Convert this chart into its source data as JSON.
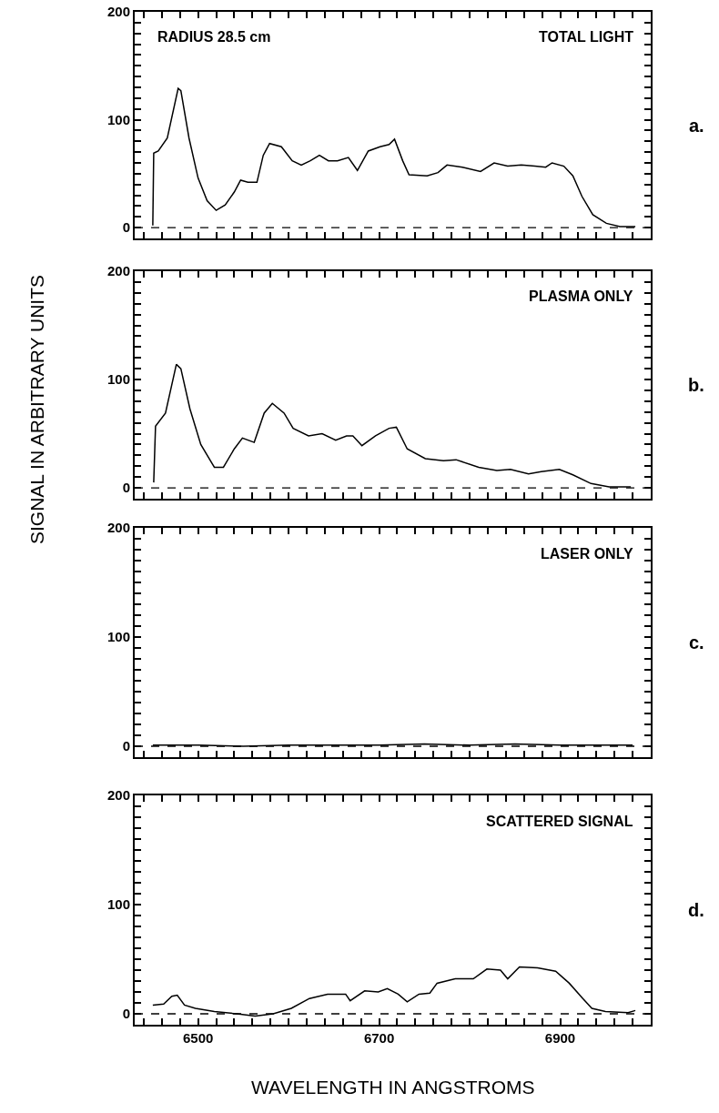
{
  "chart_data": [
    {
      "type": "line",
      "title": "TOTAL LIGHT",
      "annotations": [
        "RADIUS 28.5 cm",
        "a."
      ],
      "tick_labels": "y",
      "xlim": [
        6430,
        7000
      ],
      "ylim": [
        -10,
        200
      ],
      "xticks": [
        {
          "value": 6440,
          "label": null
        },
        {
          "value": 6460,
          "label": null
        },
        {
          "value": 6480,
          "label": null
        },
        {
          "value": 6500,
          "label": null
        },
        {
          "value": 6520,
          "label": null
        },
        {
          "value": 6540,
          "label": null
        },
        {
          "value": 6560,
          "label": null
        },
        {
          "value": 6580,
          "label": null
        },
        {
          "value": 6600,
          "label": null
        },
        {
          "value": 6620,
          "label": null
        },
        {
          "value": 6640,
          "label": null
        },
        {
          "value": 6660,
          "label": null
        },
        {
          "value": 6680,
          "label": null
        },
        {
          "value": 6700,
          "label": null
        },
        {
          "value": 6720,
          "label": null
        },
        {
          "value": 6740,
          "label": null
        },
        {
          "value": 6760,
          "label": null
        },
        {
          "value": 6780,
          "label": null
        },
        {
          "value": 6800,
          "label": null
        },
        {
          "value": 6820,
          "label": null
        },
        {
          "value": 6840,
          "label": null
        },
        {
          "value": 6860,
          "label": null
        },
        {
          "value": 6880,
          "label": null
        },
        {
          "value": 6900,
          "label": null
        },
        {
          "value": 6920,
          "label": null
        },
        {
          "value": 6940,
          "label": null
        },
        {
          "value": 6960,
          "label": null
        },
        {
          "value": 6980,
          "label": null
        }
      ],
      "yticks": [
        0,
        {
          "value": 10,
          "label": null
        },
        {
          "value": 20,
          "label": null
        },
        {
          "value": 30,
          "label": null
        },
        {
          "value": 40,
          "label": null
        },
        {
          "value": 50,
          "label": null
        },
        {
          "value": 60,
          "label": null
        },
        {
          "value": 70,
          "label": null
        },
        {
          "value": 80,
          "label": null
        },
        {
          "value": 90,
          "label": null
        },
        100,
        {
          "value": 110,
          "label": null
        },
        {
          "value": 120,
          "label": null
        },
        {
          "value": 130,
          "label": null
        },
        {
          "value": 140,
          "label": null
        },
        {
          "value": 150,
          "label": null
        },
        {
          "value": 160,
          "label": null
        },
        {
          "value": 170,
          "label": null
        },
        {
          "value": 180,
          "label": null
        },
        {
          "value": 190,
          "label": null
        },
        200
      ],
      "ref_lines": [
        {
          "axis": "y",
          "value": 0,
          "label": null,
          "color": "#000000",
          "line_style": "dashed"
        }
      ],
      "series": [
        {
          "color": "#000000",
          "line_style": "solid",
          "marker": "none",
          "x": [
            6450,
            6451,
            6456,
            6466,
            6478,
            6481,
            6490,
            6500,
            6510,
            6520,
            6530,
            6540,
            6547,
            6555,
            6565,
            6572,
            6579,
            6592,
            6604,
            6614,
            6624,
            6634,
            6644,
            6654,
            6666,
            6676,
            6688,
            6701,
            6711,
            6717,
            6726,
            6733,
            6753,
            6765,
            6775,
            6792,
            6812,
            6827,
            6842,
            6857,
            6872,
            6884,
            6891,
            6904,
            6914,
            6924,
            6936,
            6951,
            6966,
            6983
          ],
          "values": [
            2,
            69,
            71,
            83,
            129,
            127,
            83,
            46,
            25,
            16,
            21,
            33,
            44,
            42,
            42,
            67,
            78,
            75,
            62,
            58,
            62,
            67,
            62,
            62,
            65,
            53,
            71,
            75,
            77,
            82,
            62,
            49,
            48,
            51,
            58,
            56,
            52,
            60,
            57,
            58,
            57,
            56,
            60,
            57,
            48,
            29,
            12,
            4,
            1,
            1
          ]
        }
      ]
    },
    {
      "type": "line",
      "title": "PLASMA ONLY",
      "annotations": [
        "b."
      ],
      "ylabel": "SIGNAL IN ARBITRARY UNITS",
      "tick_labels": "y",
      "xlim": [
        6430,
        7000
      ],
      "ylim": [
        -10,
        200
      ],
      "xticks": [
        {
          "value": 6440,
          "label": null
        },
        {
          "value": 6460,
          "label": null
        },
        {
          "value": 6480,
          "label": null
        },
        {
          "value": 6500,
          "label": null
        },
        {
          "value": 6520,
          "label": null
        },
        {
          "value": 6540,
          "label": null
        },
        {
          "value": 6560,
          "label": null
        },
        {
          "value": 6580,
          "label": null
        },
        {
          "value": 6600,
          "label": null
        },
        {
          "value": 6620,
          "label": null
        },
        {
          "value": 6640,
          "label": null
        },
        {
          "value": 6660,
          "label": null
        },
        {
          "value": 6680,
          "label": null
        },
        {
          "value": 6700,
          "label": null
        },
        {
          "value": 6720,
          "label": null
        },
        {
          "value": 6740,
          "label": null
        },
        {
          "value": 6760,
          "label": null
        },
        {
          "value": 6780,
          "label": null
        },
        {
          "value": 6800,
          "label": null
        },
        {
          "value": 6820,
          "label": null
        },
        {
          "value": 6840,
          "label": null
        },
        {
          "value": 6860,
          "label": null
        },
        {
          "value": 6880,
          "label": null
        },
        {
          "value": 6900,
          "label": null
        },
        {
          "value": 6920,
          "label": null
        },
        {
          "value": 6940,
          "label": null
        },
        {
          "value": 6960,
          "label": null
        },
        {
          "value": 6980,
          "label": null
        }
      ],
      "yticks": [
        0,
        {
          "value": 10,
          "label": null
        },
        {
          "value": 20,
          "label": null
        },
        {
          "value": 30,
          "label": null
        },
        {
          "value": 40,
          "label": null
        },
        {
          "value": 50,
          "label": null
        },
        {
          "value": 60,
          "label": null
        },
        {
          "value": 70,
          "label": null
        },
        {
          "value": 80,
          "label": null
        },
        {
          "value": 90,
          "label": null
        },
        100,
        {
          "value": 110,
          "label": null
        },
        {
          "value": 120,
          "label": null
        },
        {
          "value": 130,
          "label": null
        },
        {
          "value": 140,
          "label": null
        },
        {
          "value": 150,
          "label": null
        },
        {
          "value": 160,
          "label": null
        },
        {
          "value": 170,
          "label": null
        },
        {
          "value": 180,
          "label": null
        },
        {
          "value": 190,
          "label": null
        },
        200
      ],
      "ref_lines": [
        {
          "axis": "y",
          "value": 0,
          "label": null,
          "color": "#000000",
          "line_style": "dashed"
        }
      ],
      "series": [
        {
          "color": "#000000",
          "line_style": "solid",
          "marker": "none",
          "x": [
            6451,
            6453,
            6464,
            6476,
            6481,
            6491,
            6503,
            6518,
            6528,
            6540,
            6549,
            6562,
            6573,
            6582,
            6595,
            6605,
            6622,
            6637,
            6652,
            6664,
            6671,
            6681,
            6696,
            6711,
            6719,
            6731,
            6751,
            6771,
            6785,
            6810,
            6830,
            6845,
            6865,
            6879,
            6899,
            6914,
            6934,
            6954,
            6978
          ],
          "values": [
            5,
            57,
            69,
            114,
            110,
            73,
            40,
            19,
            19,
            36,
            46,
            42,
            69,
            78,
            69,
            55,
            48,
            50,
            44,
            48,
            48,
            39,
            48,
            55,
            56,
            36,
            27,
            25,
            26,
            19,
            16,
            17,
            13,
            15,
            17,
            12,
            4,
            1,
            1
          ]
        }
      ]
    },
    {
      "type": "line",
      "title": "LASER ONLY",
      "annotations": [
        "c."
      ],
      "tick_labels": "y",
      "xlim": [
        6430,
        7000
      ],
      "ylim": [
        -10,
        200
      ],
      "xticks": [
        {
          "value": 6440,
          "label": null
        },
        {
          "value": 6460,
          "label": null
        },
        {
          "value": 6480,
          "label": null
        },
        {
          "value": 6500,
          "label": null
        },
        {
          "value": 6520,
          "label": null
        },
        {
          "value": 6540,
          "label": null
        },
        {
          "value": 6560,
          "label": null
        },
        {
          "value": 6580,
          "label": null
        },
        {
          "value": 6600,
          "label": null
        },
        {
          "value": 6620,
          "label": null
        },
        {
          "value": 6640,
          "label": null
        },
        {
          "value": 6660,
          "label": null
        },
        {
          "value": 6680,
          "label": null
        },
        {
          "value": 6700,
          "label": null
        },
        {
          "value": 6720,
          "label": null
        },
        {
          "value": 6740,
          "label": null
        },
        {
          "value": 6760,
          "label": null
        },
        {
          "value": 6780,
          "label": null
        },
        {
          "value": 6800,
          "label": null
        },
        {
          "value": 6820,
          "label": null
        },
        {
          "value": 6840,
          "label": null
        },
        {
          "value": 6860,
          "label": null
        },
        {
          "value": 6880,
          "label": null
        },
        {
          "value": 6900,
          "label": null
        },
        {
          "value": 6920,
          "label": null
        },
        {
          "value": 6940,
          "label": null
        },
        {
          "value": 6960,
          "label": null
        },
        {
          "value": 6980,
          "label": null
        }
      ],
      "yticks": [
        0,
        {
          "value": 10,
          "label": null
        },
        {
          "value": 20,
          "label": null
        },
        {
          "value": 30,
          "label": null
        },
        {
          "value": 40,
          "label": null
        },
        {
          "value": 50,
          "label": null
        },
        {
          "value": 60,
          "label": null
        },
        {
          "value": 70,
          "label": null
        },
        {
          "value": 80,
          "label": null
        },
        {
          "value": 90,
          "label": null
        },
        100,
        {
          "value": 110,
          "label": null
        },
        {
          "value": 120,
          "label": null
        },
        {
          "value": 130,
          "label": null
        },
        {
          "value": 140,
          "label": null
        },
        {
          "value": 150,
          "label": null
        },
        {
          "value": 160,
          "label": null
        },
        {
          "value": 170,
          "label": null
        },
        {
          "value": 180,
          "label": null
        },
        {
          "value": 190,
          "label": null
        },
        200
      ],
      "ref_lines": [
        {
          "axis": "y",
          "value": 0,
          "label": null,
          "color": "#000000",
          "line_style": "dashed"
        }
      ],
      "series": [
        {
          "color": "#000000",
          "line_style": "solid",
          "marker": "none",
          "x": [
            6450,
            6500,
            6550,
            6600,
            6650,
            6700,
            6750,
            6800,
            6850,
            6900,
            6950,
            6980
          ],
          "values": [
            1,
            1,
            0,
            1,
            1,
            1,
            2,
            1,
            2,
            1,
            1,
            1
          ]
        }
      ]
    },
    {
      "type": "line",
      "title": "SCATTERED SIGNAL",
      "annotations": [
        "d."
      ],
      "xlabel": "WAVELENGTH IN ANGSTROMS",
      "xlim": [
        6430,
        7000
      ],
      "ylim": [
        -10,
        200
      ],
      "xticks": [
        {
          "value": 6440,
          "label": null
        },
        {
          "value": 6460,
          "label": null
        },
        {
          "value": 6480,
          "label": null
        },
        6500,
        {
          "value": 6520,
          "label": null
        },
        {
          "value": 6540,
          "label": null
        },
        {
          "value": 6560,
          "label": null
        },
        {
          "value": 6580,
          "label": null
        },
        {
          "value": 6600,
          "label": null
        },
        {
          "value": 6620,
          "label": null
        },
        {
          "value": 6640,
          "label": null
        },
        {
          "value": 6660,
          "label": null
        },
        {
          "value": 6680,
          "label": null
        },
        6700,
        {
          "value": 6720,
          "label": null
        },
        {
          "value": 6740,
          "label": null
        },
        {
          "value": 6760,
          "label": null
        },
        {
          "value": 6780,
          "label": null
        },
        {
          "value": 6800,
          "label": null
        },
        {
          "value": 6820,
          "label": null
        },
        {
          "value": 6840,
          "label": null
        },
        {
          "value": 6860,
          "label": null
        },
        {
          "value": 6880,
          "label": null
        },
        6900,
        {
          "value": 6920,
          "label": null
        },
        {
          "value": 6940,
          "label": null
        },
        {
          "value": 6960,
          "label": null
        },
        {
          "value": 6980,
          "label": null
        }
      ],
      "yticks": [
        0,
        {
          "value": 10,
          "label": null
        },
        {
          "value": 20,
          "label": null
        },
        {
          "value": 30,
          "label": null
        },
        {
          "value": 40,
          "label": null
        },
        {
          "value": 50,
          "label": null
        },
        {
          "value": 60,
          "label": null
        },
        {
          "value": 70,
          "label": null
        },
        {
          "value": 80,
          "label": null
        },
        {
          "value": 90,
          "label": null
        },
        100,
        {
          "value": 110,
          "label": null
        },
        {
          "value": 120,
          "label": null
        },
        {
          "value": 130,
          "label": null
        },
        {
          "value": 140,
          "label": null
        },
        {
          "value": 150,
          "label": null
        },
        {
          "value": 160,
          "label": null
        },
        {
          "value": 170,
          "label": null
        },
        {
          "value": 180,
          "label": null
        },
        {
          "value": 190,
          "label": null
        },
        200
      ],
      "ref_lines": [
        {
          "axis": "y",
          "value": 0,
          "label": null,
          "color": "#000000",
          "line_style": "dashed"
        }
      ],
      "series": [
        {
          "color": "#000000",
          "line_style": "solid",
          "marker": "none",
          "x": [
            6450,
            6462,
            6471,
            6477,
            6485,
            6497,
            6518,
            6543,
            6563,
            6583,
            6603,
            6623,
            6643,
            6663,
            6668,
            6684,
            6699,
            6709,
            6721,
            6731,
            6744,
            6756,
            6764,
            6784,
            6804,
            6819,
            6834,
            6842,
            6855,
            6875,
            6895,
            6910,
            6925,
            6935,
            6950,
            6975,
            6983
          ],
          "values": [
            8,
            9,
            16,
            17,
            8,
            5,
            2,
            0,
            -2,
            0,
            5,
            14,
            18,
            18,
            12,
            21,
            20,
            23,
            18,
            11,
            18,
            19,
            28,
            32,
            32,
            41,
            40,
            32,
            43,
            42,
            39,
            28,
            14,
            5,
            2,
            1,
            3
          ]
        }
      ]
    }
  ]
}
